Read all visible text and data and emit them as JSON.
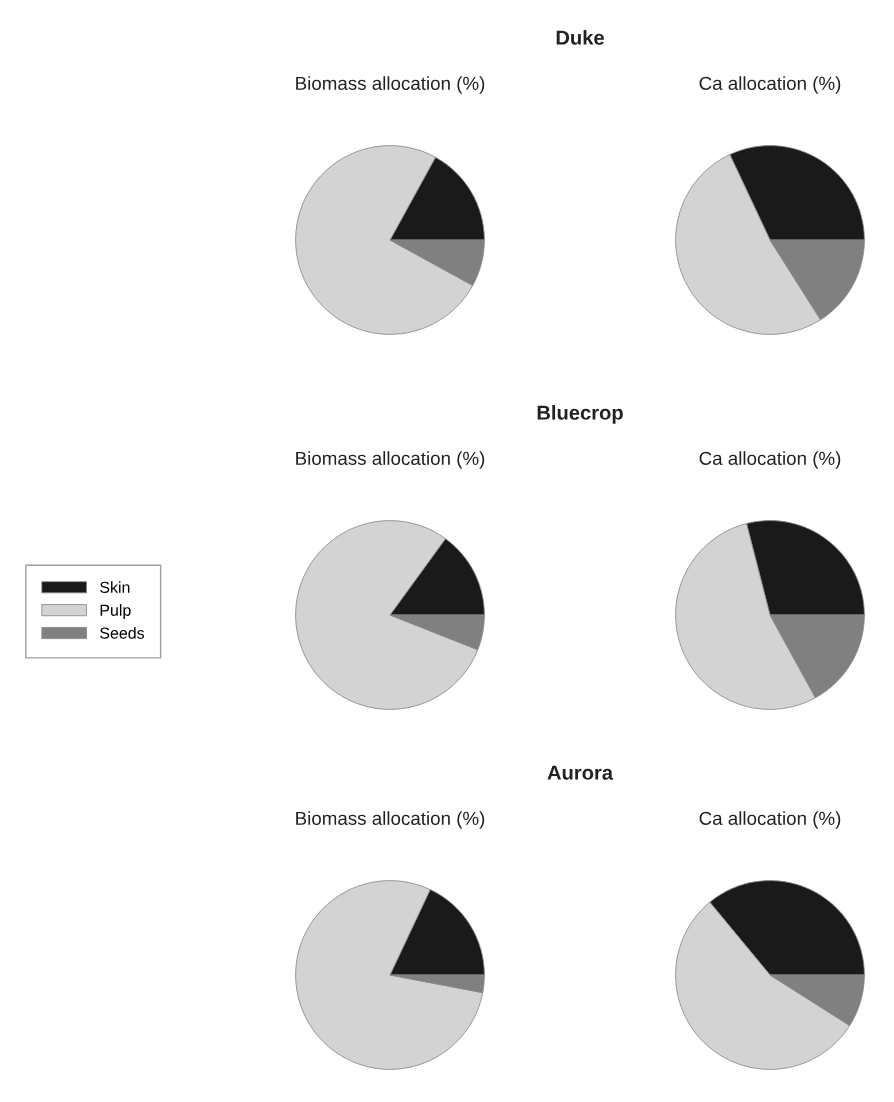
{
  "chart_data": [
    {
      "type": "pie",
      "title": "Duke",
      "subtitle": "Biomass allocation (%)",
      "categories": [
        "Skin",
        "Pulp",
        "Seeds"
      ],
      "values": [
        17,
        75,
        8
      ],
      "colors": [
        "#1a1a1a",
        "#d3d3d3",
        "#808080"
      ],
      "legend": "left"
    },
    {
      "type": "pie",
      "subtitle": "Ca allocation (%)",
      "values": [
        32,
        52,
        16
      ],
      "colors": [
        "#1a1a1a",
        "#d3d3d3",
        "#808080"
      ]
    },
    {
      "type": "pie",
      "title": "Bluecrop",
      "subtitle": "Biomass allocation (%)",
      "values": [
        15,
        79,
        6
      ],
      "colors": [
        "#1a1a1a",
        "#d3d3d3",
        "#808080"
      ]
    },
    {
      "type": "pie",
      "subtitle": "Ca allocation (%)",
      "values": [
        29,
        54,
        17
      ],
      "colors": [
        "#1a1a1a",
        "#d3d3d3",
        "#808080"
      ]
    },
    {
      "type": "pie",
      "title": "Aurora",
      "subtitle": "Biomass allocation (%)",
      "values": [
        18,
        79,
        3
      ],
      "colors": [
        "#1a1a1a",
        "#d3d3d3",
        "#808080"
      ]
    },
    {
      "type": "pie",
      "subtitle": "Ca allocation (%)",
      "values": [
        36,
        55,
        9
      ],
      "colors": [
        "#1a1a1a",
        "#d3d3d3",
        "#808080"
      ]
    }
  ]
}
